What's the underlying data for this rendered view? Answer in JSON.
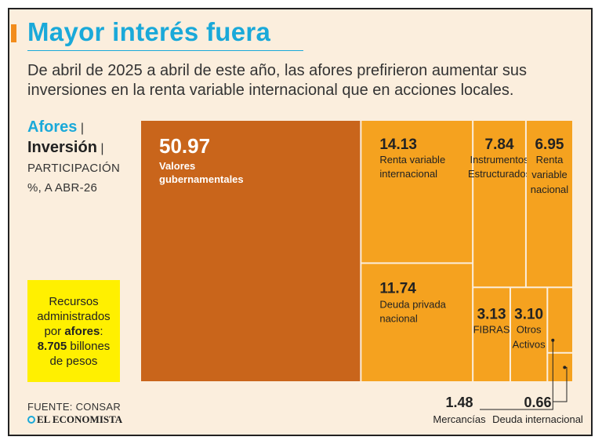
{
  "title": "Mayor interés fuera",
  "subtitle": "De abril de 2025 a abril de este año, las afores prefirieron aumentar sus inversiones en la renta variable internacional que en acciones locales.",
  "side_label": {
    "line1": "Afores",
    "line2": "Inversión",
    "line3": "PARTICIPACIÓN",
    "line4": "%, A ABR-26"
  },
  "callout": {
    "l1": "Recursos",
    "l2": "administrados",
    "l3_pre": "por ",
    "l3_bold": "afores",
    "l3_post": ":",
    "l4_bold": "8.705",
    "l4_post": " billones",
    "l5": "de pesos"
  },
  "source": "FUENTE: CONSAR",
  "brand": "EL ECONOMISTA",
  "colors": {
    "accent": "#1aa9d9",
    "large": "#c9651b",
    "small": "#f5a21f",
    "callout": "#fff000",
    "background": "#fbeedd"
  },
  "chart_data": {
    "type": "treemap",
    "unit": "%",
    "items": [
      {
        "label": "Valores gubernamentales",
        "value": 50.97
      },
      {
        "label": "Renta variable internacional",
        "value": 14.13
      },
      {
        "label": "Deuda privada nacional",
        "value": 11.74
      },
      {
        "label": "Instrumentos Estructurados",
        "value": 7.84
      },
      {
        "label": "Renta variable nacional",
        "value": 6.95
      },
      {
        "label": "FIBRAS",
        "value": 3.13
      },
      {
        "label": "Otros Activos",
        "value": 3.1
      },
      {
        "label": "Mercancías",
        "value": 1.48
      },
      {
        "label": "Deuda internacional",
        "value": 0.66
      }
    ]
  }
}
